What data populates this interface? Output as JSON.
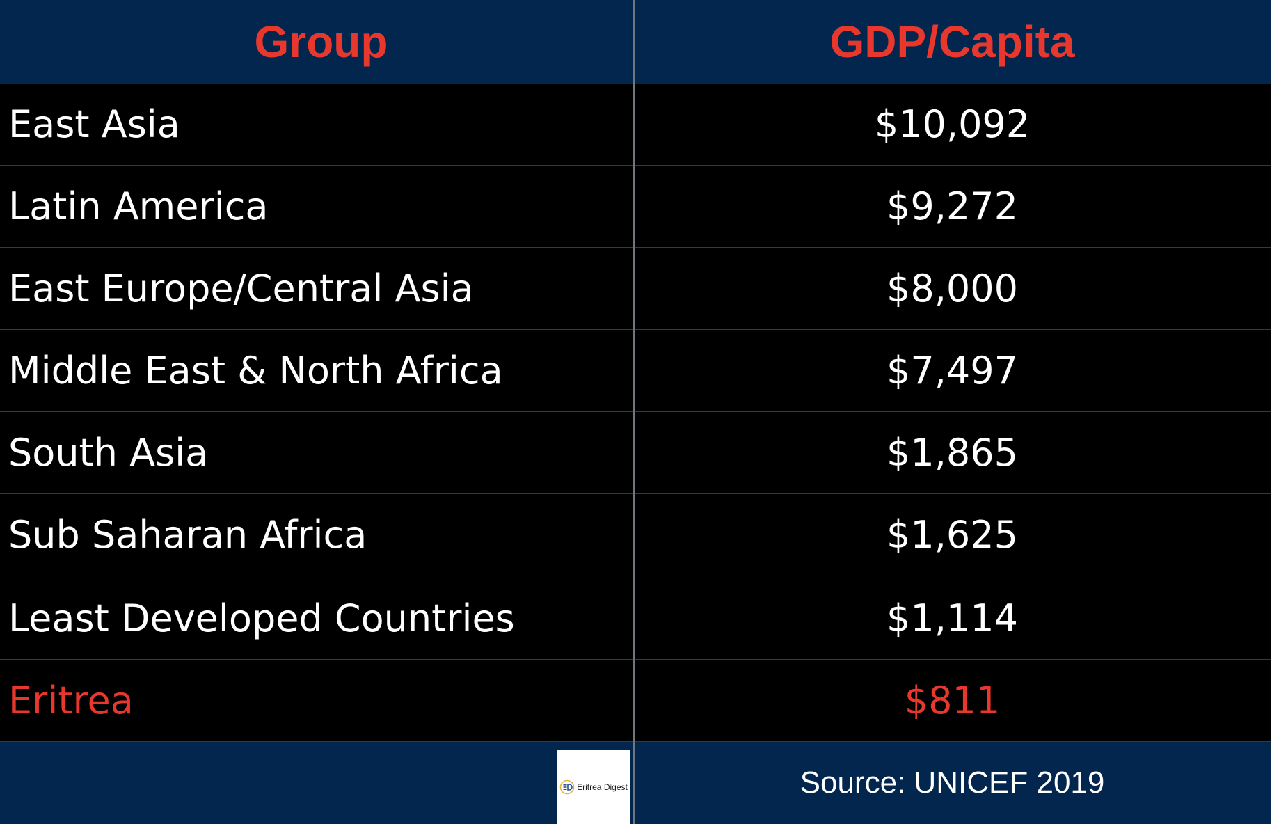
{
  "chart_data": {
    "type": "table",
    "columns": [
      "Group",
      "GDP/Capita"
    ],
    "rows": [
      {
        "group": "East Asia",
        "value": "$10,092",
        "highlight": false
      },
      {
        "group": "Latin America",
        "value": "$9,272",
        "highlight": false
      },
      {
        "group": "East Europe/Central Asia",
        "value": "$8,000",
        "highlight": false
      },
      {
        "group": "Middle East & North Africa",
        "value": "$7,497",
        "highlight": false
      },
      {
        "group": "South Asia",
        "value": "$1,865",
        "highlight": false
      },
      {
        "group": "Sub Saharan Africa",
        "value": "$1,625",
        "highlight": false
      },
      {
        "group": "Least Developed Countries",
        "value": "$1,114",
        "highlight": false
      },
      {
        "group": "Eritrea",
        "value": "$811",
        "highlight": true
      }
    ],
    "source": "Source: UNICEF 2019",
    "logo_text": "Eritrea Digest"
  },
  "colors": {
    "header_bg": "#03264e",
    "header_text": "#e8382d",
    "body_bg": "#000000",
    "body_text": "#ffffff",
    "highlight_text": "#e8382d"
  },
  "icons": {
    "logo": "eritrea-digest-logo-icon"
  }
}
